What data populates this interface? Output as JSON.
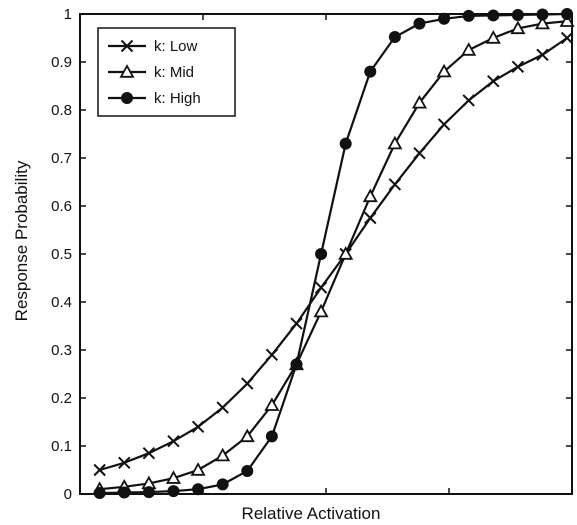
{
  "chart_data": {
    "type": "line",
    "title": "",
    "xlabel": "Relative Activation",
    "ylabel": "Response Probability",
    "xlim": [
      0,
      1
    ],
    "ylim": [
      0,
      1
    ],
    "yticks": [
      0,
      0.1,
      0.2,
      0.3,
      0.4,
      0.5,
      0.6,
      0.7,
      0.8,
      0.9,
      1
    ],
    "ytick_labels": [
      "0",
      "0.1",
      "0.2",
      "0.3",
      "0.4",
      "0.5",
      "0.6",
      "0.7",
      "0.8",
      "0.9",
      "1"
    ],
    "xticks": [
      0.25,
      0.5,
      0.75
    ],
    "xtick_labels": [
      "",
      "",
      ""
    ],
    "grid": false,
    "legend_position": "top-left",
    "x": [
      0.04,
      0.09,
      0.14,
      0.19,
      0.24,
      0.29,
      0.34,
      0.39,
      0.44,
      0.49,
      0.54,
      0.59,
      0.64,
      0.69,
      0.74,
      0.79,
      0.84,
      0.89,
      0.94,
      0.99
    ],
    "series": [
      {
        "name": "k: Low",
        "marker": "x",
        "values": [
          0.05,
          0.065,
          0.085,
          0.11,
          0.14,
          0.18,
          0.23,
          0.29,
          0.355,
          0.43,
          0.5,
          0.575,
          0.645,
          0.71,
          0.77,
          0.82,
          0.86,
          0.89,
          0.915,
          0.95
        ]
      },
      {
        "name": "k: Mid",
        "marker": "triangle-open",
        "values": [
          0.01,
          0.015,
          0.022,
          0.033,
          0.05,
          0.08,
          0.12,
          0.185,
          0.27,
          0.38,
          0.5,
          0.62,
          0.73,
          0.815,
          0.88,
          0.925,
          0.95,
          0.97,
          0.98,
          0.985
        ]
      },
      {
        "name": "k: High",
        "marker": "circle-filled",
        "values": [
          0.002,
          0.003,
          0.004,
          0.006,
          0.01,
          0.02,
          0.048,
          0.12,
          0.27,
          0.5,
          0.73,
          0.88,
          0.952,
          0.98,
          0.99,
          0.996,
          0.997,
          0.998,
          0.999,
          1.0
        ]
      }
    ]
  },
  "style": {
    "line_color": "#111111",
    "background": "#ffffff"
  }
}
